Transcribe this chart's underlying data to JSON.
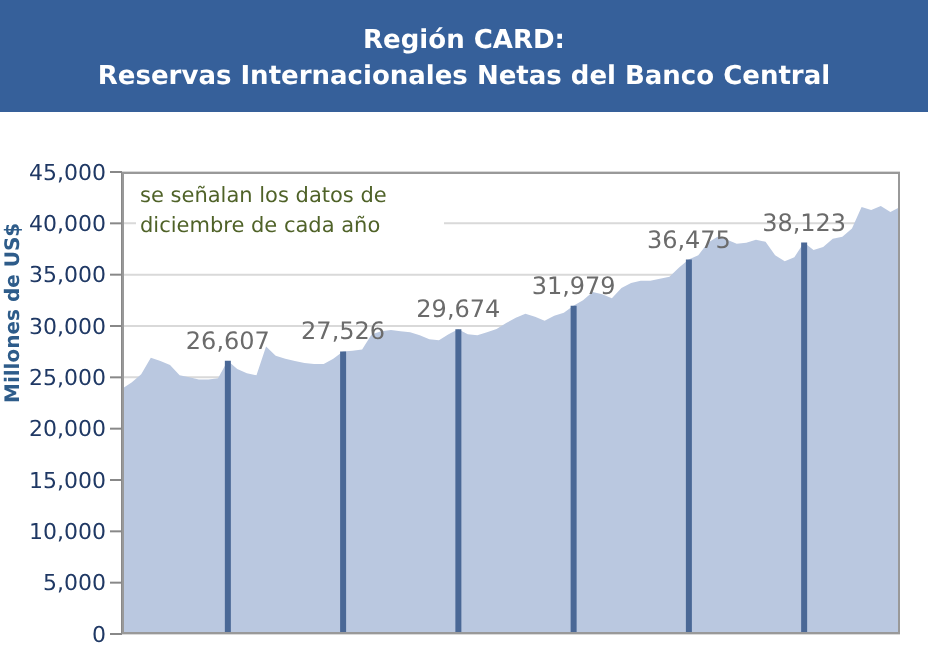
{
  "chart_data": {
    "type": "area",
    "title": "Región CARD:",
    "subtitle": "Reservas Internacionales Netas del Banco Central",
    "ylabel": "Millones de US$",
    "annotations": [
      "se señalan los datos de diciembre de cada año"
    ],
    "categories": [
      null,
      null,
      null,
      null,
      null,
      null,
      null,
      null,
      null,
      null,
      null,
      null,
      null,
      null,
      null,
      null,
      null,
      null,
      null,
      null,
      null,
      null,
      null,
      null,
      null,
      null,
      null,
      null,
      null,
      null,
      null,
      null,
      null,
      null,
      null,
      null,
      null,
      null,
      null,
      null,
      null,
      null,
      null,
      null,
      null,
      null,
      null,
      null,
      null,
      null,
      null,
      null,
      null,
      null,
      null,
      null,
      null,
      null,
      null,
      null,
      null,
      null,
      null,
      null,
      null,
      null,
      null,
      null,
      null,
      null,
      null,
      null,
      null,
      null,
      null,
      null,
      null,
      null,
      null,
      null,
      null,
      null
    ],
    "series": [
      {
        "color": "#bac8e0",
        "values": [
          23900,
          24500,
          25300,
          26900,
          26600,
          26200,
          25200,
          25000,
          24800,
          24800,
          24900,
          26607,
          25800,
          25400,
          25200,
          28000,
          27100,
          26800,
          26600,
          26400,
          26300,
          26300,
          26800,
          27526,
          27600,
          27700,
          29200,
          29500,
          29600,
          29500,
          29400,
          29100,
          28700,
          28600,
          29200,
          29674,
          29200,
          29100,
          29400,
          29700,
          30300,
          30800,
          31200,
          30900,
          30500,
          31000,
          31300,
          31979,
          32500,
          33300,
          33100,
          32700,
          33700,
          34200,
          34400,
          34400,
          34600,
          34800,
          35700,
          36475,
          36900,
          38100,
          38700,
          38400,
          38000,
          38100,
          38400,
          38200,
          36900,
          36300,
          36700,
          38123,
          37400,
          37700,
          38500,
          38700,
          39500,
          41600,
          41300,
          41700,
          41100,
          41600
        ]
      },
      {
        "type": "bar",
        "color": "#4a6896",
        "values": [
          null,
          null,
          null,
          null,
          null,
          null,
          null,
          null,
          null,
          null,
          null,
          26607,
          null,
          null,
          null,
          null,
          null,
          null,
          null,
          null,
          null,
          null,
          null,
          27526,
          null,
          null,
          null,
          null,
          null,
          null,
          null,
          null,
          null,
          null,
          null,
          29674,
          null,
          null,
          null,
          null,
          null,
          null,
          null,
          null,
          null,
          null,
          null,
          31979,
          null,
          null,
          null,
          null,
          null,
          null,
          null,
          null,
          null,
          null,
          null,
          36475,
          null,
          null,
          null,
          null,
          null,
          null,
          null,
          null,
          null,
          null,
          null,
          38123,
          null,
          null,
          null,
          null,
          null,
          null,
          null,
          null,
          null,
          null
        ]
      }
    ],
    "value_labels": [
      null,
      null,
      null,
      null,
      null,
      null,
      null,
      null,
      null,
      null,
      null,
      "26,607",
      null,
      null,
      null,
      null,
      null,
      null,
      null,
      null,
      null,
      null,
      null,
      "27,526",
      null,
      null,
      null,
      null,
      null,
      null,
      null,
      null,
      null,
      null,
      null,
      "29,674",
      null,
      null,
      null,
      null,
      null,
      null,
      null,
      null,
      null,
      null,
      null,
      "31,979",
      null,
      null,
      null,
      null,
      null,
      null,
      null,
      null,
      null,
      null,
      null,
      "36,475",
      null,
      null,
      null,
      null,
      null,
      null,
      null,
      null,
      null,
      null,
      null,
      "38,123",
      null,
      null,
      null,
      null,
      null,
      null,
      null,
      null,
      null,
      null
    ],
    "ylim": [
      0,
      45000
    ],
    "yticks": [
      0,
      {
        "value": 5000,
        "label": "5,000"
      },
      {
        "value": 10000,
        "label": "10,000"
      },
      {
        "value": 15000,
        "label": "15,000"
      },
      {
        "value": 20000,
        "label": "20,000"
      },
      {
        "value": 25000,
        "label": "25,000"
      },
      {
        "value": 30000,
        "label": "30,000"
      },
      {
        "value": 35000,
        "label": "35,000"
      },
      {
        "value": 40000,
        "label": "40,000"
      },
      {
        "value": 45000,
        "label": "45,000"
      }
    ],
    "grid": "y",
    "tick_labels": "y",
    "legend": false
  }
}
